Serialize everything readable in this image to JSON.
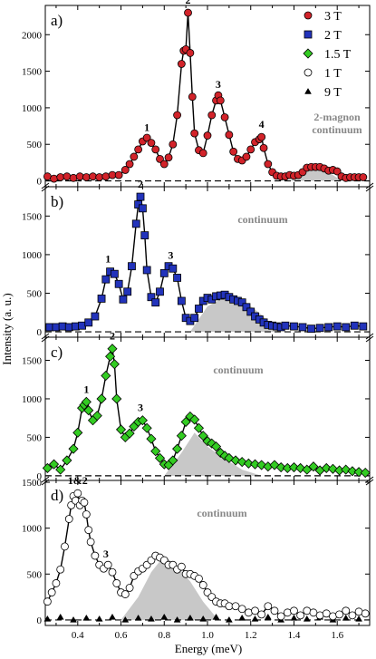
{
  "figure": {
    "ylabel": "Intensity (a. u.)",
    "xlabel": "Energy (meV)",
    "xticks": [
      "0.4",
      "0.6",
      "0.8",
      "1.0",
      "1.2",
      "1.4",
      "1.6"
    ],
    "legend": [
      {
        "label": "3 T",
        "marker": "circle",
        "fill": "#d2232a"
      },
      {
        "label": "2 T",
        "marker": "square",
        "fill": "#2233bb"
      },
      {
        "label": "1.5 T",
        "marker": "diamond",
        "fill": "#33cc22"
      },
      {
        "label": "1 T",
        "marker": "circle",
        "fill": "#ffffff"
      },
      {
        "label": "9 T",
        "marker": "triangle",
        "fill": "#000000"
      }
    ]
  },
  "chart_data": [
    {
      "type": "scatter",
      "panel_label": "a)",
      "series_name": "3 T",
      "color": "#d2232a",
      "xlim": [
        0.25,
        1.75
      ],
      "ylim": [
        -80,
        2400
      ],
      "yticks": [
        "0",
        "500",
        "1000",
        "1500",
        "2000"
      ],
      "fit_line": true,
      "continuum": {
        "x": [
          1.38,
          1.45,
          1.5,
          1.56,
          1.62
        ],
        "y": [
          0,
          120,
          180,
          120,
          0
        ]
      },
      "peaks": [
        {
          "label": "1",
          "x": 0.72,
          "y": 560
        },
        {
          "label": "2",
          "x": 0.91,
          "y": 2300
        },
        {
          "label": "3",
          "x": 1.05,
          "y": 1150
        },
        {
          "label": "4",
          "x": 1.25,
          "y": 600
        }
      ],
      "annotations": [
        "2-magnon",
        "continuum"
      ],
      "x": [
        0.26,
        0.29,
        0.32,
        0.35,
        0.38,
        0.41,
        0.44,
        0.47,
        0.5,
        0.53,
        0.56,
        0.59,
        0.62,
        0.64,
        0.66,
        0.68,
        0.7,
        0.72,
        0.74,
        0.76,
        0.78,
        0.8,
        0.82,
        0.84,
        0.86,
        0.88,
        0.89,
        0.9,
        0.91,
        0.92,
        0.93,
        0.94,
        0.96,
        0.98,
        1.0,
        1.02,
        1.04,
        1.05,
        1.06,
        1.08,
        1.1,
        1.12,
        1.14,
        1.16,
        1.18,
        1.2,
        1.22,
        1.24,
        1.25,
        1.26,
        1.28,
        1.3,
        1.32,
        1.34,
        1.36,
        1.38,
        1.4,
        1.42,
        1.44,
        1.46,
        1.48,
        1.5,
        1.52,
        1.54,
        1.56,
        1.58,
        1.6,
        1.62,
        1.64,
        1.66,
        1.68,
        1.7,
        1.72
      ],
      "y": [
        60,
        30,
        50,
        60,
        40,
        60,
        50,
        60,
        50,
        60,
        80,
        80,
        150,
        230,
        330,
        430,
        540,
        590,
        520,
        430,
        300,
        230,
        320,
        500,
        900,
        1600,
        1780,
        1800,
        2300,
        1750,
        1150,
        650,
        420,
        380,
        620,
        900,
        1100,
        1170,
        1100,
        870,
        630,
        400,
        300,
        280,
        330,
        430,
        530,
        570,
        600,
        450,
        230,
        120,
        70,
        60,
        60,
        80,
        70,
        80,
        120,
        180,
        190,
        190,
        190,
        170,
        140,
        150,
        130,
        60,
        40,
        50,
        50,
        50,
        50
      ]
    },
    {
      "type": "scatter",
      "panel_label": "b)",
      "series_name": "2 T",
      "color": "#2233bb",
      "xlim": [
        0.25,
        1.75
      ],
      "ylim": [
        -70,
        1880
      ],
      "yticks": [
        "0",
        "500",
        "1000",
        "1500"
      ],
      "fit_line": true,
      "continuum": {
        "x": [
          0.92,
          1.0,
          1.08,
          1.16,
          1.25,
          1.33
        ],
        "y": [
          0,
          330,
          450,
          420,
          220,
          0
        ]
      },
      "peaks": [
        {
          "label": "1",
          "x": 0.54,
          "y": 780
        },
        {
          "label": "2",
          "x": 0.69,
          "y": 1750
        },
        {
          "label": "3",
          "x": 0.83,
          "y": 830
        }
      ],
      "annotations": [
        "continuum"
      ],
      "x": [
        0.27,
        0.3,
        0.33,
        0.36,
        0.39,
        0.42,
        0.45,
        0.48,
        0.51,
        0.53,
        0.55,
        0.57,
        0.59,
        0.61,
        0.63,
        0.65,
        0.67,
        0.68,
        0.69,
        0.7,
        0.71,
        0.72,
        0.74,
        0.76,
        0.78,
        0.8,
        0.82,
        0.84,
        0.86,
        0.88,
        0.9,
        0.92,
        0.94,
        0.96,
        0.98,
        1.0,
        1.02,
        1.04,
        1.06,
        1.08,
        1.1,
        1.12,
        1.14,
        1.16,
        1.18,
        1.2,
        1.22,
        1.24,
        1.26,
        1.28,
        1.3,
        1.32,
        1.34,
        1.36,
        1.4,
        1.44,
        1.48,
        1.52,
        1.56,
        1.6,
        1.64,
        1.68,
        1.72
      ],
      "y": [
        60,
        60,
        70,
        60,
        70,
        80,
        120,
        200,
        430,
        680,
        780,
        750,
        620,
        420,
        520,
        850,
        1400,
        1650,
        1750,
        1600,
        1250,
        800,
        450,
        380,
        520,
        760,
        850,
        820,
        700,
        400,
        180,
        140,
        180,
        300,
        400,
        440,
        420,
        460,
        470,
        480,
        450,
        420,
        400,
        380,
        320,
        260,
        200,
        160,
        120,
        90,
        80,
        70,
        60,
        80,
        70,
        60,
        40,
        50,
        60,
        70,
        60,
        80,
        70
      ]
    },
    {
      "type": "scatter",
      "panel_label": "c)",
      "series_name": "1.5 T",
      "color": "#33cc22",
      "xlim": [
        0.25,
        1.75
      ],
      "ylim": [
        -60,
        1800
      ],
      "yticks": [
        "0",
        "500",
        "1000",
        "1500"
      ],
      "fit_line": true,
      "continuum": {
        "x": [
          0.8,
          0.88,
          0.94,
          1.0,
          1.08,
          1.16,
          1.25
        ],
        "y": [
          0,
          300,
          560,
          380,
          220,
          80,
          0
        ]
      },
      "peaks": [
        {
          "label": "1",
          "x": 0.44,
          "y": 960
        },
        {
          "label": "2",
          "x": 0.56,
          "y": 1650
        },
        {
          "label": "3",
          "x": 0.69,
          "y": 720
        }
      ],
      "annotations": [
        "continuum"
      ],
      "x": [
        0.26,
        0.29,
        0.32,
        0.35,
        0.38,
        0.4,
        0.42,
        0.43,
        0.44,
        0.45,
        0.47,
        0.49,
        0.51,
        0.53,
        0.55,
        0.56,
        0.57,
        0.58,
        0.6,
        0.62,
        0.64,
        0.66,
        0.68,
        0.7,
        0.72,
        0.74,
        0.76,
        0.78,
        0.8,
        0.82,
        0.84,
        0.86,
        0.88,
        0.9,
        0.92,
        0.94,
        0.96,
        0.98,
        1.0,
        1.02,
        1.04,
        1.06,
        1.08,
        1.1,
        1.13,
        1.16,
        1.19,
        1.22,
        1.25,
        1.28,
        1.31,
        1.34,
        1.37,
        1.4,
        1.43,
        1.46,
        1.49,
        1.52,
        1.55,
        1.58,
        1.61,
        1.64,
        1.67,
        1.7,
        1.73
      ],
      "y": [
        100,
        150,
        80,
        200,
        350,
        560,
        880,
        920,
        960,
        850,
        720,
        780,
        1000,
        1300,
        1550,
        1650,
        1450,
        1000,
        600,
        500,
        550,
        640,
        700,
        720,
        620,
        480,
        320,
        230,
        150,
        140,
        200,
        350,
        520,
        700,
        770,
        730,
        620,
        520,
        450,
        420,
        380,
        300,
        260,
        230,
        200,
        180,
        160,
        150,
        140,
        120,
        140,
        110,
        100,
        110,
        100,
        80,
        120,
        70,
        100,
        90,
        70,
        80,
        60,
        50,
        40
      ]
    },
    {
      "type": "scatter",
      "panel_label": "d)",
      "series_name": "1 T",
      "color": "#ffffff",
      "xlim": [
        0.25,
        1.75
      ],
      "ylim": [
        -60,
        1520
      ],
      "yticks": [
        "0",
        "500",
        "1000",
        "1500"
      ],
      "fit_line": true,
      "continuum": {
        "x": [
          0.6,
          0.68,
          0.74,
          0.8,
          0.86,
          0.92,
          0.98,
          1.05
        ],
        "y": [
          0,
          250,
          520,
          700,
          580,
          420,
          200,
          0
        ]
      },
      "peaks": [
        {
          "label": "1&2",
          "x": 0.4,
          "y": 1380
        },
        {
          "label": "3",
          "x": 0.53,
          "y": 580
        }
      ],
      "annotations": [
        "continuum"
      ],
      "x": [
        0.26,
        0.28,
        0.3,
        0.32,
        0.34,
        0.36,
        0.37,
        0.38,
        0.39,
        0.4,
        0.41,
        0.42,
        0.43,
        0.44,
        0.45,
        0.46,
        0.48,
        0.5,
        0.52,
        0.54,
        0.56,
        0.58,
        0.6,
        0.62,
        0.64,
        0.66,
        0.68,
        0.7,
        0.72,
        0.74,
        0.76,
        0.78,
        0.8,
        0.82,
        0.84,
        0.86,
        0.88,
        0.9,
        0.92,
        0.94,
        0.96,
        0.98,
        1.0,
        1.02,
        1.04,
        1.06,
        1.08,
        1.1,
        1.13,
        1.16,
        1.19,
        1.22,
        1.25,
        1.28,
        1.31,
        1.34,
        1.37,
        1.4,
        1.43,
        1.46,
        1.49,
        1.52,
        1.55,
        1.58,
        1.61,
        1.64,
        1.67,
        1.7,
        1.73
      ],
      "y": [
        200,
        300,
        400,
        550,
        800,
        1100,
        1250,
        1350,
        1300,
        1380,
        1250,
        1300,
        1280,
        1150,
        980,
        850,
        700,
        600,
        560,
        600,
        520,
        400,
        300,
        280,
        350,
        480,
        530,
        560,
        600,
        650,
        700,
        680,
        650,
        600,
        600,
        550,
        580,
        500,
        500,
        480,
        450,
        380,
        300,
        250,
        200,
        180,
        180,
        150,
        150,
        120,
        80,
        100,
        60,
        150,
        100,
        40,
        80,
        100,
        50,
        100,
        80,
        50,
        70,
        40,
        60,
        100,
        50,
        90,
        70
      ],
      "reference": {
        "series_name": "9 T",
        "x": [
          0.26,
          0.32,
          0.38,
          0.44,
          0.5,
          0.56,
          0.62,
          0.68,
          0.74,
          0.8,
          0.86,
          0.92,
          0.98,
          1.04,
          1.1,
          1.16,
          1.22,
          1.28,
          1.34,
          1.4,
          1.46,
          1.52,
          1.58,
          1.64,
          1.7
        ],
        "y": [
          10,
          30,
          0,
          20,
          10,
          30,
          0,
          20,
          10,
          30,
          0,
          20,
          10,
          30,
          0,
          20,
          10,
          30,
          0,
          20,
          10,
          30,
          0,
          20,
          10
        ]
      }
    }
  ]
}
